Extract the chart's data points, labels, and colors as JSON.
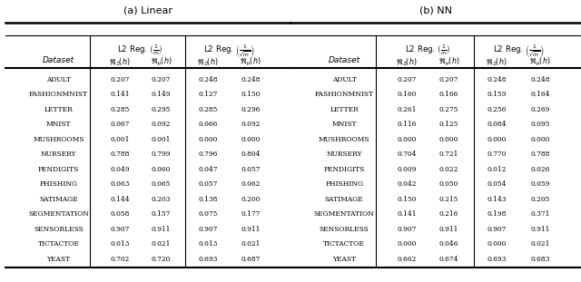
{
  "title_a": "(a) Linear",
  "title_b": "(b) NN",
  "datasets": [
    "ADULT",
    "FASHIONMNIST",
    "LETTER",
    "MNIST",
    "MUSHROOMS",
    "NURSERY",
    "PENDIGITS",
    "PHISHING",
    "SATIMAGE",
    "SEGMENTATION",
    "SENSORLESS",
    "TICTACTOE",
    "YEAST"
  ],
  "linear": {
    "l2_1m_Rs": [
      0.207,
      0.141,
      0.285,
      0.067,
      0.001,
      0.788,
      0.049,
      0.063,
      0.144,
      0.058,
      0.907,
      0.013,
      0.702
    ],
    "l2_1m_Rmu": [
      0.207,
      0.149,
      0.295,
      0.092,
      0.001,
      0.799,
      0.06,
      0.065,
      0.203,
      0.157,
      0.911,
      0.021,
      0.72
    ],
    "l2_1sqm_Rs": [
      0.248,
      0.127,
      0.285,
      0.066,
      0.0,
      0.796,
      0.047,
      0.057,
      0.138,
      0.075,
      0.907,
      0.013,
      0.693
    ],
    "l2_1sqm_Rmu": [
      0.248,
      0.15,
      0.296,
      0.092,
      0.0,
      0.804,
      0.057,
      0.062,
      0.2,
      0.177,
      0.911,
      0.021,
      0.687
    ]
  },
  "nn": {
    "l2_1m_Rs": [
      0.207,
      0.16,
      0.261,
      0.116,
      0.0,
      0.704,
      0.009,
      0.042,
      0.15,
      0.141,
      0.907,
      0.0,
      0.662
    ],
    "l2_1m_Rmu": [
      0.207,
      0.166,
      0.275,
      0.125,
      0.0,
      0.721,
      0.022,
      0.05,
      0.215,
      0.216,
      0.911,
      0.046,
      0.674
    ],
    "l2_1sqm_Rs": [
      0.248,
      0.159,
      0.256,
      0.084,
      0.0,
      0.77,
      0.012,
      0.054,
      0.143,
      0.198,
      0.907,
      0.0,
      0.693
    ],
    "l2_1sqm_Rmu": [
      0.248,
      0.164,
      0.269,
      0.095,
      0.0,
      0.788,
      0.026,
      0.059,
      0.205,
      0.371,
      0.911,
      0.021,
      0.683
    ]
  }
}
